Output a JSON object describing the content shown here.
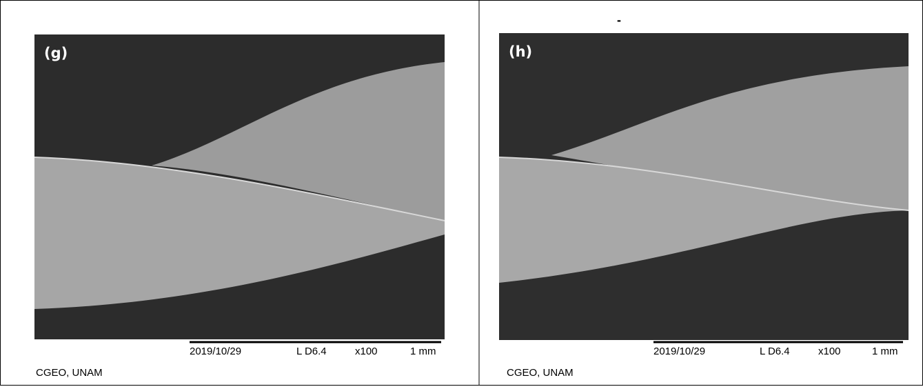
{
  "panels": [
    {
      "label": "(g)",
      "date": "2019/10/29",
      "mode": "L D6.4",
      "magnification": "x100",
      "scale": "1 mm",
      "credit": "CGEO, UNAM"
    },
    {
      "label": "(h)",
      "date": "2019/10/29",
      "mode": "L D6.4",
      "magnification": "x100",
      "scale": "1 mm",
      "credit": "CGEO, UNAM"
    }
  ],
  "mark": "-"
}
